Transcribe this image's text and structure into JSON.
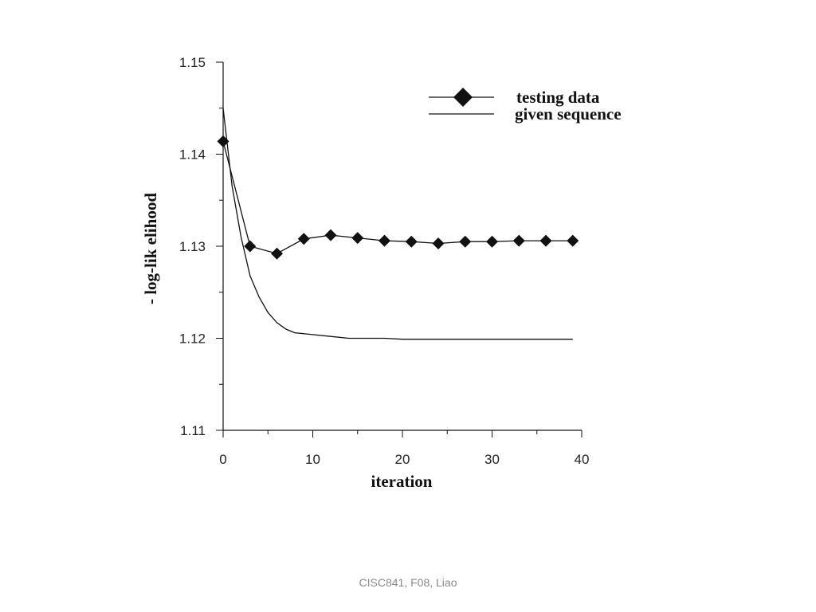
{
  "chart_data": {
    "type": "line",
    "title": "",
    "xlabel": "iteration",
    "ylabel": "- log-lik elihood",
    "xlim": [
      0,
      40
    ],
    "ylim": [
      1.11,
      1.15
    ],
    "x_ticks": [
      0,
      10,
      20,
      30,
      40
    ],
    "x_tick_labels": [
      "0",
      "10",
      "20",
      "30",
      "40"
    ],
    "y_ticks": [
      1.11,
      1.12,
      1.13,
      1.14,
      1.15
    ],
    "y_tick_labels": [
      "1.11",
      "1.12",
      "1.13",
      "1.14",
      "1.15"
    ],
    "grid": false,
    "legend_position": "top-right",
    "series": [
      {
        "name": "testing data",
        "marker": "diamond",
        "color": "#111111",
        "x": [
          0,
          3,
          6,
          9,
          12,
          15,
          18,
          21,
          24,
          27,
          30,
          33,
          36,
          39
        ],
        "values": [
          1.1414,
          1.13,
          1.1292,
          1.1308,
          1.1312,
          1.1309,
          1.1306,
          1.1305,
          1.1303,
          1.1305,
          1.1305,
          1.1306,
          1.1306,
          1.1306
        ]
      },
      {
        "name": "given sequence",
        "marker": "none",
        "color": "#111111",
        "x": [
          0,
          1,
          2,
          3,
          4,
          5,
          6,
          7,
          8,
          10,
          12,
          14,
          16,
          18,
          20,
          25,
          30,
          35,
          39
        ],
        "values": [
          1.145,
          1.1365,
          1.131,
          1.1268,
          1.1245,
          1.1228,
          1.1217,
          1.121,
          1.1206,
          1.1204,
          1.1202,
          1.12,
          1.12,
          1.12,
          1.1199,
          1.1199,
          1.1199,
          1.1199,
          1.1199
        ]
      }
    ]
  },
  "footer": {
    "text": "CISC841, F08, Liao"
  }
}
